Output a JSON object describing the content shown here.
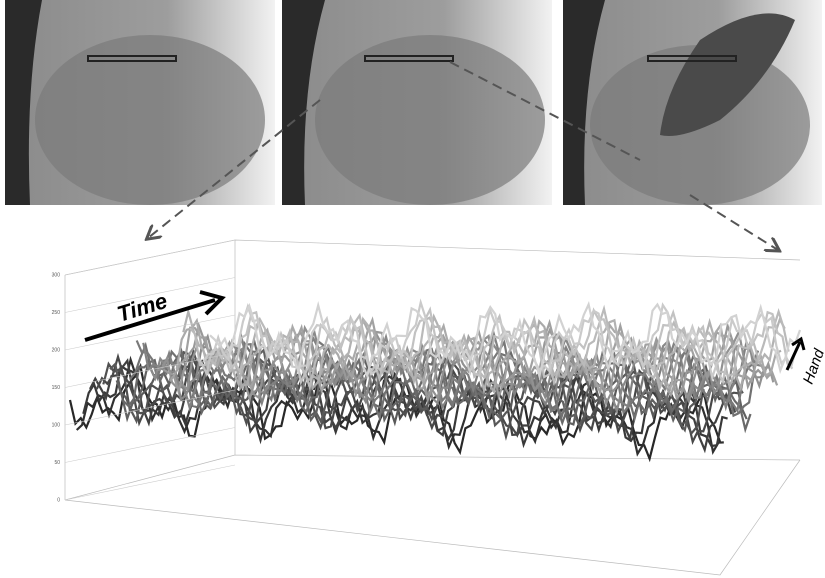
{
  "figure": {
    "annotations": {
      "time": "Time",
      "hand": "Hand"
    },
    "y_ticks": [
      "0",
      "50",
      "100",
      "150",
      "200",
      "250",
      "300"
    ]
  }
}
